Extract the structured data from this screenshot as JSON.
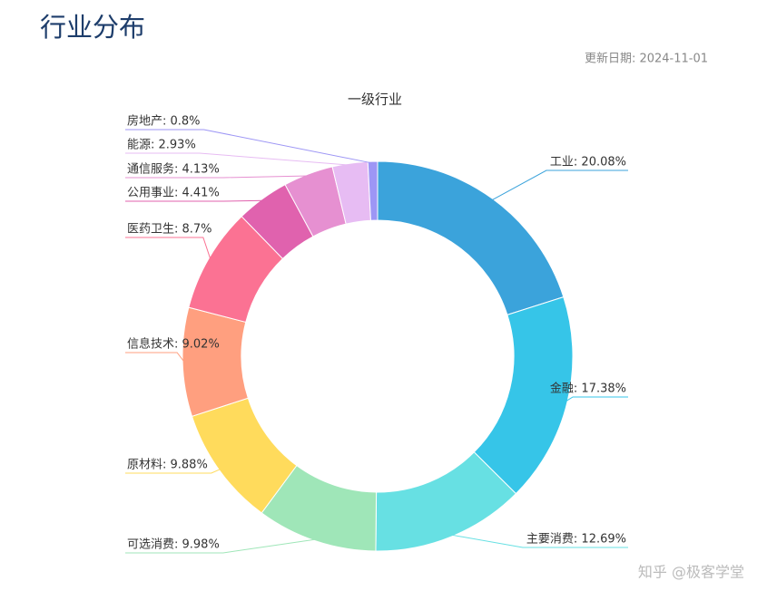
{
  "header": {
    "title": "行业分布",
    "updated": "更新日期: 2024-11-01"
  },
  "chart_data": {
    "type": "donut",
    "title": "一级行业",
    "values": [
      20.08,
      17.38,
      12.69,
      9.98,
      9.88,
      9.02,
      8.7,
      4.41,
      4.13,
      2.93,
      0.8
    ],
    "value_labels": [
      "工业: 20.08%",
      "金融: 17.38%",
      "主要消费: 12.69%",
      "可选消费: 9.98%",
      "原材料: 9.88%",
      "信息技术: 9.02%",
      "医药卫生: 8.7%",
      "公用事业: 4.41%",
      "通信服务: 4.13%",
      "能源: 2.93%",
      "房地产: 0.8%"
    ],
    "colors": [
      "#3ba3db",
      "#36c5e8",
      "#67e0e3",
      "#9fe6b8",
      "#ffdb5c",
      "#ff9f7f",
      "#fb7293",
      "#e062ae",
      "#e690d1",
      "#e7bcf3",
      "#9d96f5"
    ]
  },
  "watermark": "知乎 @极客学堂"
}
